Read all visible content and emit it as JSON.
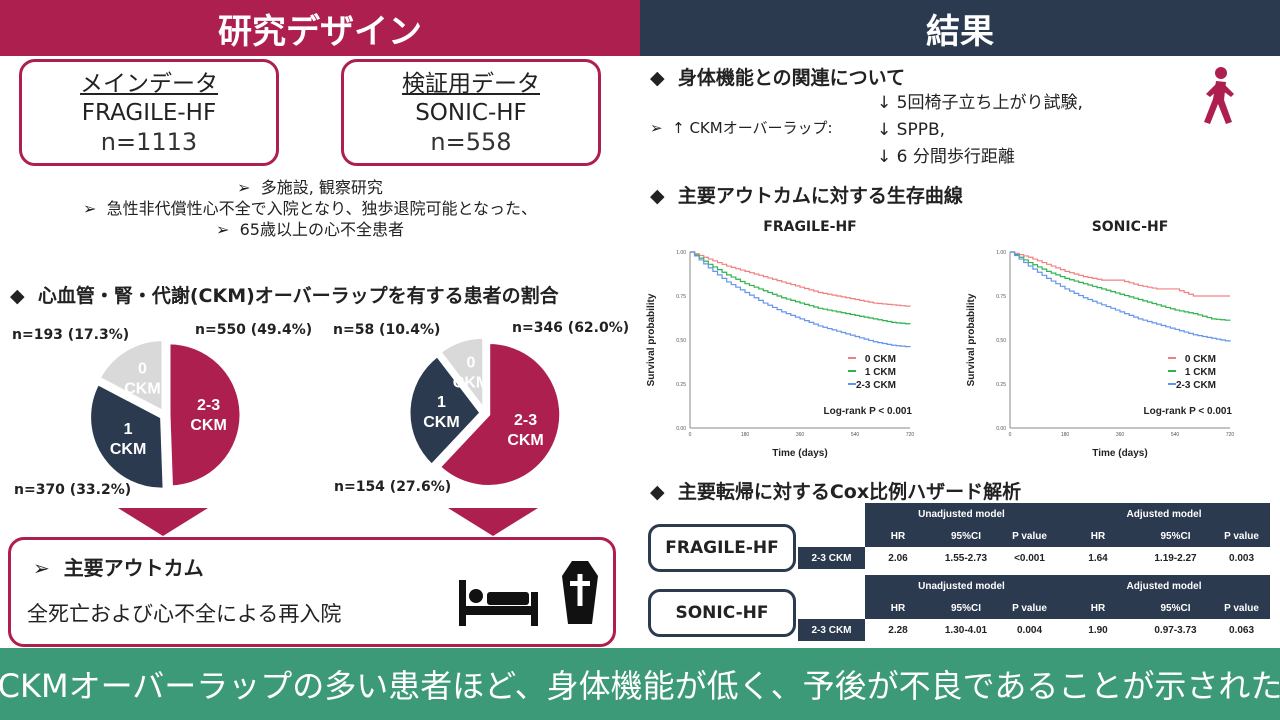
{
  "left": {
    "header": "研究デザイン",
    "main_data": {
      "title": "メインデータ",
      "name": "FRAGILE-HF",
      "count": "n=1113"
    },
    "validation_data": {
      "title": "検証用データ",
      "name": "SONIC-HF",
      "count": "n=558"
    },
    "criteria": [
      "多施設, 観察研究",
      "急性非代償性心不全で入院となり、独歩退院可能となった、",
      "65歳以上の心不全患者"
    ],
    "section_title": "心血管・腎・代謝(CKM)オーバーラップを有する患者の割合",
    "pie_labels": {
      "fragile": {
        "ckm0": "n=193 (17.3%)",
        "ckm23": "n=550 (49.4%)",
        "ckm1": "n=370 (33.2%)"
      },
      "sonic": {
        "ckm0": "n=58 (10.4%)",
        "ckm23": "n=346 (62.0%)",
        "ckm1": "n=154 (27.6%)"
      }
    },
    "slice_labels": {
      "ckm0": [
        "0",
        "CKM"
      ],
      "ckm1": [
        "1",
        "CKM"
      ],
      "ckm23": [
        "2-3",
        "CKM"
      ]
    },
    "outcome": {
      "title": "主要アウトカム",
      "text": "全死亡および心不全による再入院"
    }
  },
  "right": {
    "header": "結果",
    "physical": {
      "title": "身体機能との関連について",
      "lead": "↑ CKMオーバーラップ:",
      "items": [
        "↓ 5回椅子立ち上がり試験,",
        "↓ SPPB,",
        "↓ 6 分間歩行距離"
      ]
    },
    "survival_title": "主要アウトカムに対する生存曲線",
    "cox_title": "主要転帰に対するCox比例ハザード解析",
    "cox": [
      {
        "cohort": "FRAGILE-HF",
        "group_unadj": "Unadjusted model",
        "group_adj": "Adjusted model",
        "cols": [
          "HR",
          "95%CI",
          "P value",
          "HR",
          "95%CI",
          "P value"
        ],
        "row_label": "2-3 CKM",
        "values": [
          "2.06",
          "1.55-2.73",
          "<0.001",
          "1.64",
          "1.19-2.27",
          "0.003"
        ]
      },
      {
        "cohort": "SONIC-HF",
        "group_unadj": "Unadjusted model",
        "group_adj": "Adjusted model",
        "cols": [
          "HR",
          "95%CI",
          "P value",
          "HR",
          "95%CI",
          "P value"
        ],
        "row_label": "2-3 CKM",
        "values": [
          "2.28",
          "1.30-4.01",
          "0.004",
          "1.90",
          "0.97-3.73",
          "0.063"
        ]
      }
    ]
  },
  "footer": "CKMオーバーラップの多い患者ほど、身体機能が低く、予後が不良であることが示された",
  "colors": {
    "crimson": "#AD1F4E",
    "navy": "#2B3A4F",
    "grey": "#D9D9D9",
    "green": "#3D9A78",
    "km_red": "#F08080",
    "km_green": "#2DB34A",
    "km_blue": "#6495ED"
  },
  "chart_data": [
    {
      "type": "pie",
      "title": "",
      "categories": [
        "0 CKM",
        "1 CKM",
        "2-3 CKM"
      ],
      "values": [
        17.3,
        33.2,
        49.4
      ],
      "counts": [
        193,
        370,
        550
      ]
    },
    {
      "type": "pie",
      "title": "",
      "categories": [
        "0 CKM",
        "1 CKM",
        "2-3 CKM"
      ],
      "values": [
        10.4,
        27.6,
        62.0
      ],
      "counts": [
        58,
        154,
        346
      ]
    },
    {
      "type": "line",
      "title": "FRAGILE-HF",
      "xlabel": "Time (days)",
      "ylabel": "Survival probability",
      "xlim": [
        0,
        720
      ],
      "ylim": [
        0,
        1
      ],
      "xticks": [
        "0",
        "180",
        "360",
        "540",
        "720"
      ],
      "yticks": [
        "0.00",
        "0.25",
        "0.50",
        "0.75",
        "1.00"
      ],
      "annotation": "Log-rank P < 0.001",
      "series": [
        {
          "name": "0 CKM",
          "x": [
            0,
            60,
            120,
            180,
            240,
            300,
            360,
            420,
            480,
            540,
            600,
            660,
            720
          ],
          "y": [
            1.0,
            0.96,
            0.92,
            0.89,
            0.86,
            0.83,
            0.8,
            0.77,
            0.75,
            0.73,
            0.71,
            0.7,
            0.69
          ]
        },
        {
          "name": "1 CKM",
          "x": [
            0,
            60,
            120,
            180,
            240,
            300,
            360,
            420,
            480,
            540,
            600,
            660,
            720
          ],
          "y": [
            1.0,
            0.93,
            0.87,
            0.82,
            0.78,
            0.74,
            0.71,
            0.68,
            0.66,
            0.64,
            0.62,
            0.6,
            0.59
          ]
        },
        {
          "name": "2-3 CKM",
          "x": [
            0,
            60,
            120,
            180,
            240,
            300,
            360,
            420,
            480,
            540,
            600,
            660,
            720
          ],
          "y": [
            1.0,
            0.91,
            0.83,
            0.77,
            0.71,
            0.66,
            0.62,
            0.58,
            0.55,
            0.52,
            0.49,
            0.47,
            0.46
          ]
        }
      ]
    },
    {
      "type": "line",
      "title": "SONIC-HF",
      "xlabel": "Time (days)",
      "ylabel": "Survival probability",
      "xlim": [
        0,
        720
      ],
      "ylim": [
        0,
        1
      ],
      "xticks": [
        "0",
        "180",
        "360",
        "540",
        "720"
      ],
      "yticks": [
        "0.00",
        "0.25",
        "0.50",
        "0.75",
        "1.00"
      ],
      "annotation": "Log-rank P < 0.001",
      "series": [
        {
          "name": "0 CKM",
          "x": [
            0,
            60,
            120,
            180,
            240,
            300,
            360,
            420,
            480,
            540,
            600,
            660,
            720
          ],
          "y": [
            1.0,
            0.97,
            0.93,
            0.89,
            0.86,
            0.84,
            0.84,
            0.81,
            0.79,
            0.79,
            0.75,
            0.75,
            0.75
          ]
        },
        {
          "name": "1 CKM",
          "x": [
            0,
            60,
            120,
            180,
            240,
            300,
            360,
            420,
            480,
            540,
            600,
            660,
            720
          ],
          "y": [
            1.0,
            0.94,
            0.89,
            0.85,
            0.82,
            0.79,
            0.76,
            0.73,
            0.7,
            0.67,
            0.65,
            0.62,
            0.61
          ]
        },
        {
          "name": "2-3 CKM",
          "x": [
            0,
            60,
            120,
            180,
            240,
            300,
            360,
            420,
            480,
            540,
            600,
            660,
            720
          ],
          "y": [
            1.0,
            0.92,
            0.85,
            0.79,
            0.74,
            0.7,
            0.66,
            0.62,
            0.59,
            0.56,
            0.53,
            0.51,
            0.49
          ]
        }
      ]
    }
  ]
}
